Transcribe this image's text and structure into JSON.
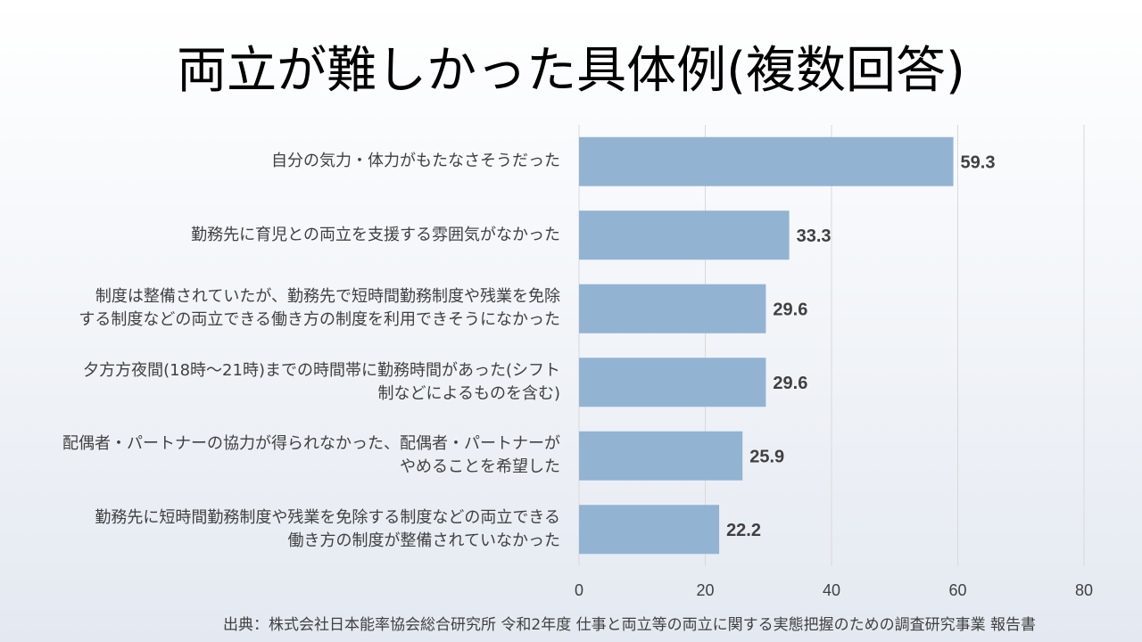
{
  "title": "両立が難しかった具体例(複数回答)",
  "source": "出典：株式会社日本能率協会総合研究所  令和2年度  仕事と両立等の両立に関する実態把握のための調査研究事業  報告書",
  "chart_data": {
    "type": "bar",
    "orientation": "horizontal",
    "categories": [
      "自分の気力・体力がもたなさそうだった",
      "勤務先に育児との両立を支援する雰囲気がなかった",
      "制度は整備されていたが、勤務先で短時間勤務制度や残業を免除する制度などの両立できる働き方の制度を利用できそうになかった",
      "夕方方夜間(18時～21時)までの時間帯に勤務時間があった(シフト制などによるものを含む)",
      "配偶者・パートナーの協力が得られなかった、配偶者・パートナーがやめることを希望した",
      "勤務先に短時間勤務制度や残業を免除する制度などの両立できる働き方の制度が整備されていなかった"
    ],
    "category_lines": [
      [
        "自分の気力・体力がもたなさそうだった"
      ],
      [
        "勤務先に育児との両立を支援する雰囲気がなかった"
      ],
      [
        "制度は整備されていたが、勤務先で短時間勤務制度や残業を免除",
        "する制度などの両立できる働き方の制度を利用できそうになかった"
      ],
      [
        "夕方方夜間(18時～21時)までの時間帯に勤務時間があった(シフト",
        "制などによるものを含む)"
      ],
      [
        "配偶者・パートナーの協力が得られなかった、配偶者・パートナーが",
        "やめることを希望した"
      ],
      [
        "勤務先に短時間勤務制度や残業を免除する制度などの両立できる",
        "働き方の制度が整備されていなかった"
      ]
    ],
    "values": [
      59.3,
      33.3,
      29.6,
      29.6,
      25.9,
      22.2
    ],
    "data_labels": [
      "59.3",
      "33.3",
      "29.6",
      "29.6",
      "25.9",
      "22.2"
    ],
    "xlim": [
      0,
      80
    ],
    "xticks": [
      0,
      20,
      40,
      60,
      80
    ],
    "grid": true,
    "colors": {
      "bar": "#93b3d2",
      "grid": "#d9d9d9",
      "label": "#404040"
    }
  }
}
